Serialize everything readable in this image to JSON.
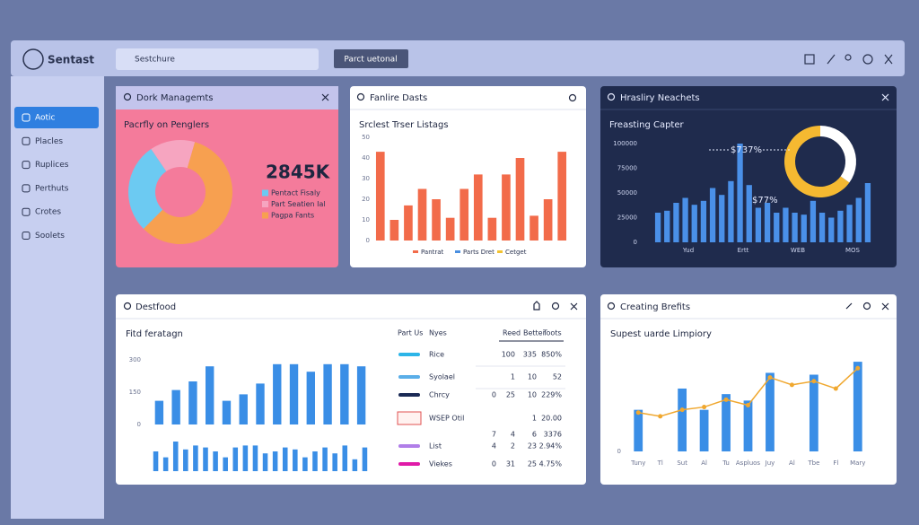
{
  "header": {
    "brand": "Sentast",
    "search": "Sestchure",
    "button": "Parct uetonal"
  },
  "nav": {
    "items": [
      "Aotic",
      "Placles",
      "Ruplices",
      "Perthuts",
      "Crotes",
      "Soolets"
    ],
    "active": 0
  },
  "panels": [
    {
      "title": "Dork Managemts",
      "subtitle": "Pacrfly on Penglers",
      "kpi": "2845K",
      "type": "pie",
      "series": [
        {
          "name": "Pentact Fisaly",
          "color": "#6ccaf2",
          "values": 28
        },
        {
          "name": "Part Seatien Ial",
          "color": "#f6a5c0",
          "values": 14
        },
        {
          "name": "Pagpa Fants",
          "color": "#f7a050",
          "values": 58
        }
      ]
    },
    {
      "title": "Fanlire Dasts",
      "subtitle": "Srclest Trser Listags",
      "type": "bar",
      "ylim": [
        0,
        50
      ],
      "yticks": [
        0,
        10,
        20,
        30,
        40,
        50
      ],
      "values": [
        43,
        10,
        17,
        25,
        20,
        11,
        25,
        32,
        11,
        32,
        40,
        12,
        20,
        43
      ],
      "color": "#f26b4a",
      "legend": [
        {
          "name": "Pantrat",
          "color": "#f26b4a"
        },
        {
          "name": "Parts Dret",
          "color": "#4a8fe0"
        },
        {
          "name": "Cetget",
          "color": "#f2c230"
        }
      ]
    },
    {
      "title": "Hrasliry Neachets",
      "subtitle": "Freasting Capter",
      "type": "bar",
      "annotations": [
        "$737%",
        "$77%"
      ],
      "ylim": [
        0,
        100000
      ],
      "yticks": [
        0,
        25000,
        50000,
        75000,
        100000
      ],
      "xlabels": [
        "Yud",
        "Ertt",
        "WEB",
        "MOS"
      ],
      "values": [
        30000,
        32000,
        40000,
        45000,
        38000,
        42000,
        55000,
        48000,
        62000,
        100000,
        58000,
        35000,
        40000,
        30000,
        35000,
        30000,
        28000,
        42000,
        30000,
        25000,
        32000,
        38000,
        45000,
        60000
      ],
      "color": "#4a90e8",
      "donut": {
        "values": [
          35,
          65
        ],
        "colors": [
          "#ffffff",
          "#f5b931"
        ]
      }
    },
    {
      "title": "Destfood",
      "subtitle": "Fitd feratagn",
      "type": "bar",
      "ylim": [
        0,
        350
      ],
      "yticks": [
        0,
        150,
        300
      ],
      "values": [
        110,
        160,
        200,
        270,
        110,
        140,
        190,
        280,
        280,
        245,
        280,
        280,
        270
      ],
      "lower_ylim": [
        0,
        30
      ],
      "lower_values": [
        20,
        14,
        30,
        22,
        26,
        24,
        20,
        14,
        24,
        26,
        26,
        18,
        20,
        24,
        22,
        14,
        20,
        24,
        18,
        26,
        12,
        24
      ],
      "color": "#3a8ee6",
      "table": {
        "headers": [
          "Part Us",
          "Nyes",
          "Reed",
          "Better",
          "Toots"
        ],
        "rows": [
          {
            "name": "Rice",
            "color": "#2cb5e8",
            "cells": [
              null,
              "100",
              "335",
              "850%"
            ]
          },
          {
            "name": "Syolael",
            "color": "#5aaee8",
            "cells": [
              null,
              "1",
              "10",
              "52"
            ]
          },
          {
            "name": "Chrcy",
            "color": "#1a2a55",
            "cells": [
              "0",
              "25",
              "10",
              "229%"
            ]
          },
          {
            "name": "WSEP Otil",
            "color": "#e05050",
            "cells": [
              null,
              null,
              "1",
              "20.00"
            ]
          },
          {
            "name": null,
            "color": null,
            "cells": [
              "7",
              "4",
              "6",
              "3376"
            ]
          },
          {
            "name": "List",
            "color": "#b07ee8",
            "cells": [
              "4",
              "2",
              "23",
              "2.94%"
            ]
          },
          {
            "name": "Viekes",
            "color": "#e01aa8",
            "cells": [
              "0",
              "31",
              "25",
              "4.75%"
            ]
          }
        ]
      }
    },
    {
      "title": "Creating Brefits",
      "subtitle": "Supest uarde Limpiory",
      "type": "combo",
      "categories": [
        "Tuny",
        "Tl",
        "Sut",
        "Al",
        "Tu",
        "Aspluos",
        "Juy",
        "Al",
        "Tbe",
        "Fl",
        "Mary"
      ],
      "ylim": [
        0,
        100
      ],
      "yticks": [
        0
      ],
      "bars": [
        45,
        null,
        68,
        45,
        62,
        55,
        85,
        null,
        83,
        null,
        97
      ],
      "bar_color": "#3a8ee6",
      "line": [
        42,
        38,
        45,
        48,
        56,
        50,
        80,
        72,
        76,
        68,
        90
      ],
      "line_color": "#f0a830"
    }
  ]
}
